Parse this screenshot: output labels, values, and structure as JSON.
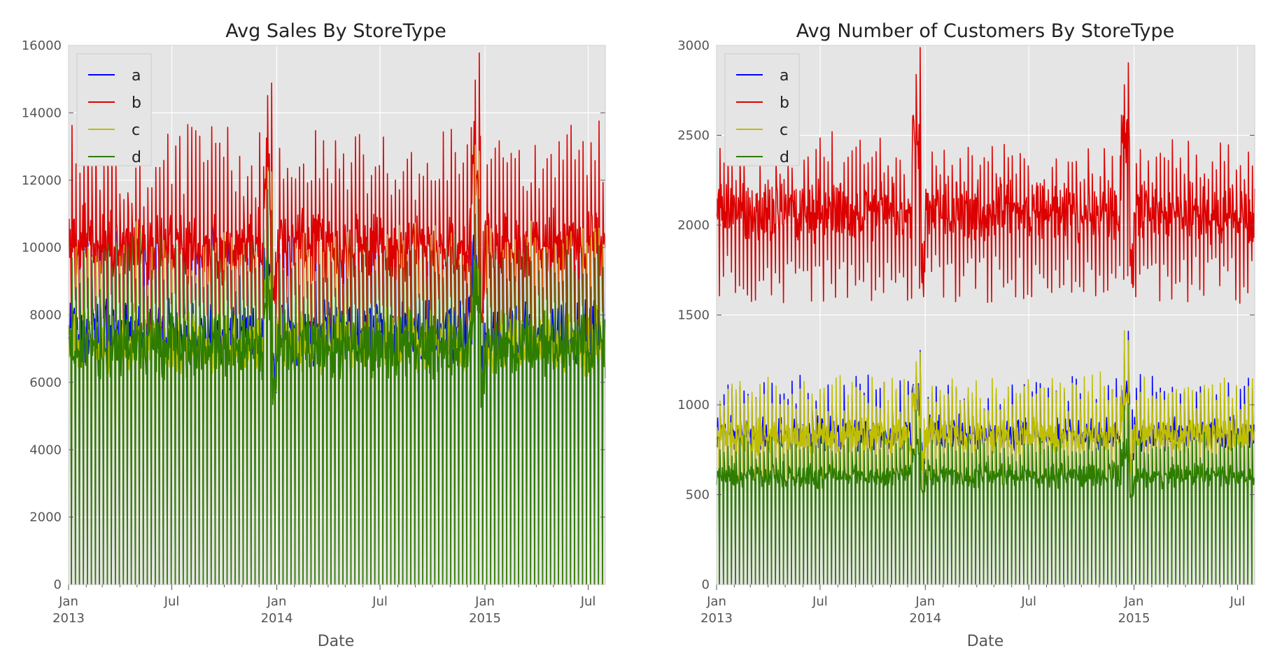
{
  "chart_data": [
    {
      "type": "line",
      "title": "Avg Sales By StoreType",
      "xlabel": "Date",
      "ylabel": "",
      "x_range": [
        "2013-01-01",
        "2015-07-31"
      ],
      "ylim": [
        0,
        16000
      ],
      "yticks": [
        0,
        2000,
        4000,
        6000,
        8000,
        10000,
        12000,
        14000,
        16000
      ],
      "xticks": [
        {
          "date": "2013-01-01",
          "label": "Jan",
          "sub": "2013"
        },
        {
          "date": "2013-07-01",
          "label": "Jul",
          "sub": ""
        },
        {
          "date": "2014-01-01",
          "label": "Jan",
          "sub": "2014"
        },
        {
          "date": "2014-07-01",
          "label": "Jul",
          "sub": ""
        },
        {
          "date": "2015-01-01",
          "label": "Jan",
          "sub": "2015"
        },
        {
          "date": "2015-07-01",
          "label": "Jul",
          "sub": ""
        }
      ],
      "grid": true,
      "legend_position": "top-left",
      "series": [
        {
          "name": "a",
          "color": "#0000ff",
          "typical_value": 6800,
          "weekly_peak": 9300,
          "sunday_value": 0
        },
        {
          "name": "b",
          "color": "#dd0000",
          "typical_value": 9400,
          "weekly_peak": 11800,
          "sunday_value": 8000
        },
        {
          "name": "c",
          "color": "#bfbf00",
          "typical_value": 6500,
          "weekly_peak": 9000,
          "sunday_value": 0
        },
        {
          "name": "d",
          "color": "#2e7d00",
          "typical_value": 6400,
          "weekly_peak": 8800,
          "sunday_value": 0
        }
      ]
    },
    {
      "type": "line",
      "title": "Avg Number of Customers By StoreType",
      "xlabel": "Date",
      "ylabel": "",
      "x_range": [
        "2013-01-01",
        "2015-07-31"
      ],
      "ylim": [
        0,
        3000
      ],
      "yticks": [
        0,
        500,
        1000,
        1500,
        2000,
        2500,
        3000
      ],
      "xticks": [
        {
          "date": "2013-01-01",
          "label": "Jan",
          "sub": "2013"
        },
        {
          "date": "2013-07-01",
          "label": "Jul",
          "sub": ""
        },
        {
          "date": "2014-01-01",
          "label": "Jan",
          "sub": "2014"
        },
        {
          "date": "2014-07-01",
          "label": "Jul",
          "sub": ""
        },
        {
          "date": "2015-01-01",
          "label": "Jan",
          "sub": "2015"
        },
        {
          "date": "2015-07-01",
          "label": "Jul",
          "sub": ""
        }
      ],
      "grid": true,
      "legend_position": "top-left",
      "series": [
        {
          "name": "a",
          "color": "#0000ff",
          "typical_value": 780,
          "weekly_peak": 1000,
          "sunday_value": 0
        },
        {
          "name": "b",
          "color": "#dd0000",
          "typical_value": 2000,
          "weekly_peak": 2250,
          "sunday_value": 1700
        },
        {
          "name": "c",
          "color": "#bfbf00",
          "typical_value": 760,
          "weekly_peak": 1000,
          "sunday_value": 0
        },
        {
          "name": "d",
          "color": "#2e7d00",
          "typical_value": 560,
          "weekly_peak": 720,
          "sunday_value": 0
        }
      ]
    }
  ]
}
